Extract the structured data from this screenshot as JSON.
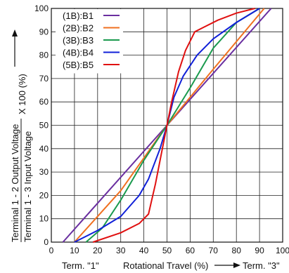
{
  "chart_data": {
    "type": "line",
    "xlim": [
      0,
      100
    ],
    "ylim": [
      0,
      100
    ],
    "xticks": [
      "0",
      "10",
      "20",
      "30",
      "40",
      "50",
      "60",
      "70",
      "80",
      "90",
      "100"
    ],
    "yticks": [
      "0",
      "10",
      "20",
      "30",
      "40",
      "50",
      "60",
      "70",
      "80",
      "90",
      "100"
    ],
    "grid": true,
    "legend_position": "top-left",
    "x_label_left": "Term. \"1\"",
    "xlabel": "Rotational Travel (%)",
    "x_label_right": "Term. \"3\"",
    "ylabel": {
      "left_line": "Terminal 1 - 2 Output Voltage",
      "right_line": "Terminal 1 - 3 Input Voltage",
      "suffix": "X 100 (%)"
    },
    "series": [
      {
        "name": "(1B):B1",
        "color": "#6a2fa0",
        "points": [
          [
            5,
            0
          ],
          [
            50,
            50
          ],
          [
            95,
            100
          ]
        ]
      },
      {
        "name": "(2B):B2",
        "color": "#f07020",
        "points": [
          [
            10,
            0
          ],
          [
            30,
            22
          ],
          [
            50,
            50
          ],
          [
            70,
            74
          ],
          [
            92,
            100
          ]
        ]
      },
      {
        "name": "(3B):B3",
        "color": "#1a9a4e",
        "points": [
          [
            15,
            0
          ],
          [
            22,
            6
          ],
          [
            30,
            18
          ],
          [
            40,
            35
          ],
          [
            50,
            50
          ],
          [
            60,
            66
          ],
          [
            70,
            83
          ],
          [
            80,
            94
          ],
          [
            90,
            100
          ]
        ]
      },
      {
        "name": "(4B):B4",
        "color": "#1020d8",
        "points": [
          [
            10,
            0
          ],
          [
            20,
            5
          ],
          [
            30,
            11
          ],
          [
            38,
            20
          ],
          [
            42,
            27
          ],
          [
            47,
            40
          ],
          [
            50,
            50
          ],
          [
            53,
            62
          ],
          [
            57,
            71
          ],
          [
            63,
            80
          ],
          [
            70,
            87
          ],
          [
            80,
            94
          ],
          [
            90,
            100
          ]
        ]
      },
      {
        "name": "(5B):B5",
        "color": "#e01010",
        "points": [
          [
            18,
            0
          ],
          [
            30,
            4
          ],
          [
            38,
            8
          ],
          [
            42,
            12
          ],
          [
            45,
            25
          ],
          [
            48,
            40
          ],
          [
            50,
            50
          ],
          [
            52,
            60
          ],
          [
            55,
            73
          ],
          [
            58,
            82
          ],
          [
            62,
            90
          ],
          [
            66,
            92
          ],
          [
            72,
            95
          ],
          [
            80,
            98
          ],
          [
            88,
            100
          ]
        ]
      }
    ]
  }
}
